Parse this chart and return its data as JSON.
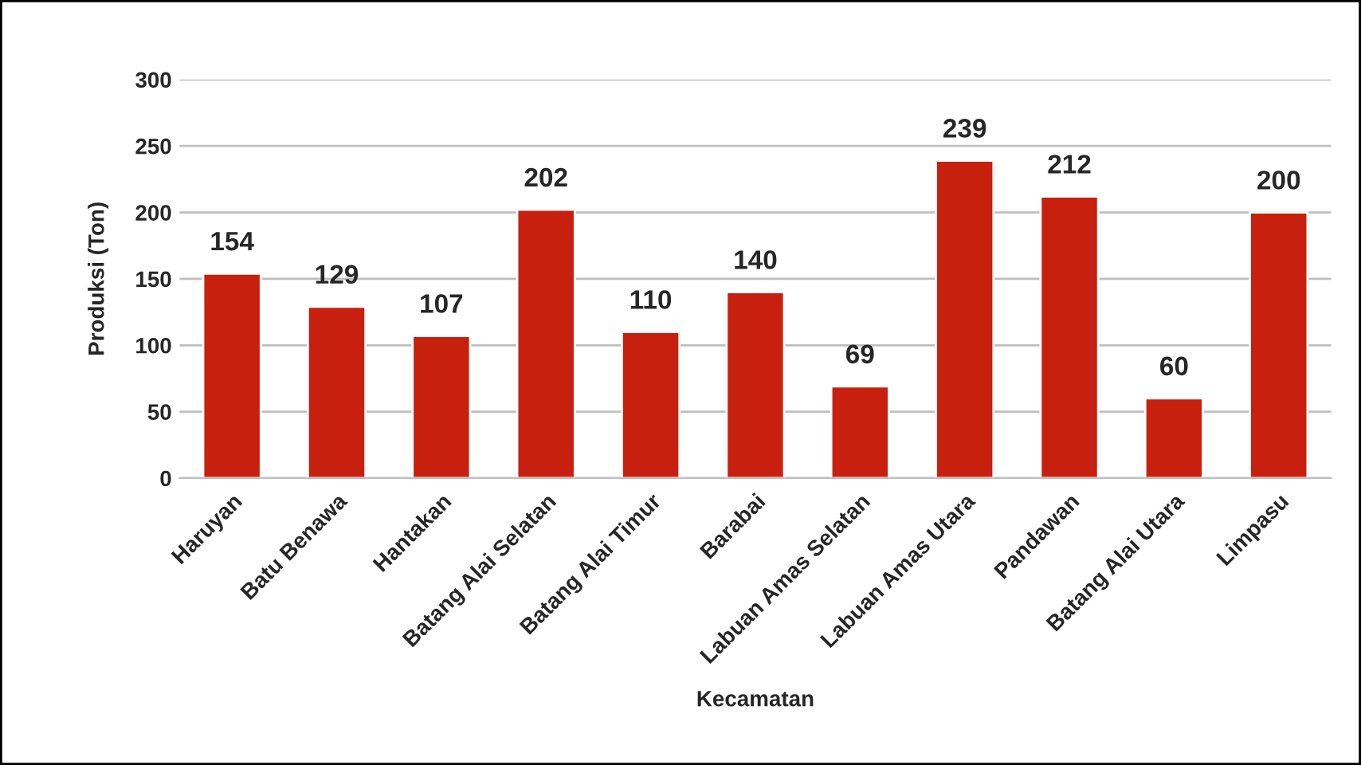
{
  "chart_data": {
    "type": "bar",
    "categories": [
      "Haruyan",
      "Batu Benawa",
      "Hantakan",
      "Batang Alai Selatan",
      "Batang Alai Timur",
      "Barabai",
      "Labuan Amas Selatan",
      "Labuan Amas Utara",
      "Pandawan",
      "Batang Alai Utara",
      "Limpasu"
    ],
    "values": [
      154,
      129,
      107,
      202,
      110,
      140,
      69,
      239,
      212,
      60,
      200
    ],
    "color": "#c8200e",
    "xlabel": "Kecamatan",
    "ylabel": "Produksi (Ton)",
    "ylim": [
      0,
      300
    ],
    "yticks": [
      0,
      50,
      100,
      150,
      200,
      250,
      300
    ],
    "grid": "y",
    "data_labels": true
  }
}
